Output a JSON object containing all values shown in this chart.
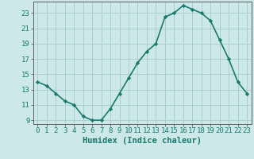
{
  "x": [
    0,
    1,
    2,
    3,
    4,
    5,
    6,
    7,
    8,
    9,
    10,
    11,
    12,
    13,
    14,
    15,
    16,
    17,
    18,
    19,
    20,
    21,
    22,
    23
  ],
  "y": [
    14.0,
    13.5,
    12.5,
    11.5,
    11.0,
    9.5,
    9.0,
    9.0,
    10.5,
    12.5,
    14.5,
    16.5,
    18.0,
    19.0,
    22.5,
    23.0,
    24.0,
    23.5,
    23.0,
    22.0,
    19.5,
    17.0,
    14.0,
    12.5
  ],
  "xlabel": "Humidex (Indice chaleur)",
  "ylabel": "",
  "xlim": [
    -0.5,
    23.5
  ],
  "ylim": [
    8.5,
    24.5
  ],
  "yticks": [
    9,
    11,
    13,
    15,
    17,
    19,
    21,
    23
  ],
  "xticks": [
    0,
    1,
    2,
    3,
    4,
    5,
    6,
    7,
    8,
    9,
    10,
    11,
    12,
    13,
    14,
    15,
    16,
    17,
    18,
    19,
    20,
    21,
    22,
    23
  ],
  "line_color": "#1a7a6e",
  "marker": "D",
  "marker_size": 2.2,
  "bg_color": "#cce8e8",
  "grid_color": "#aacece",
  "axis_color": "#5a5a5a",
  "tick_color": "#1a7a6e",
  "xlabel_fontsize": 7.5,
  "tick_fontsize": 6.5,
  "line_width": 1.2
}
